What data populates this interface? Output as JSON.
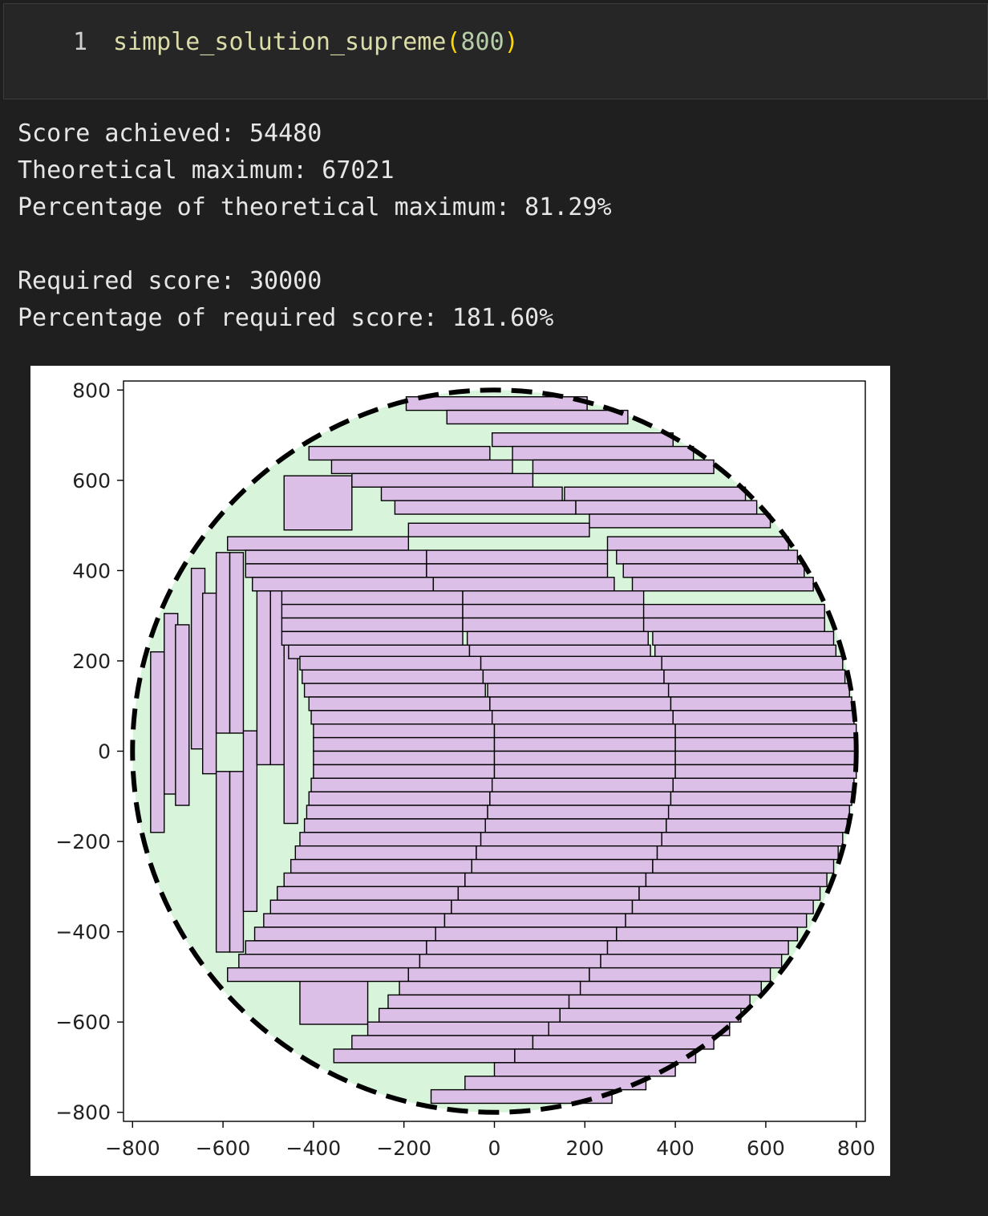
{
  "cell": {
    "line_number": "1",
    "function_name": "simple_solution_supreme",
    "open_paren": "(",
    "argument": "800",
    "close_paren": ")"
  },
  "output": {
    "score_line": "Score achieved: 54480",
    "theoretical_line": "Theoretical maximum: 67021",
    "pct_theoretical_line": "Percentage of theoretical maximum: 81.29%",
    "required_line": "Required score: 30000",
    "pct_required_line": "Percentage of required score: 181.60%"
  },
  "colors": {
    "circle_fill": "#d8f5dc",
    "rect_fill": "#dcbfe6",
    "edge": "#000000"
  },
  "chart_data": {
    "type": "rect-packing",
    "title": "",
    "xlabel": "",
    "ylabel": "",
    "xlim": [
      -820,
      820
    ],
    "ylim": [
      -820,
      820
    ],
    "xticks": [
      -800,
      -600,
      -400,
      -200,
      0,
      200,
      400,
      600,
      800
    ],
    "yticks": [
      800,
      600,
      400,
      200,
      0,
      -200,
      -400,
      -600,
      -800
    ],
    "xtick_labels": [
      "−800",
      "−600",
      "−400",
      "−200",
      "0",
      "200",
      "400",
      "600",
      "800"
    ],
    "ytick_labels": [
      "800",
      "600",
      "400",
      "200",
      "0",
      "−200",
      "−400",
      "−600",
      "−800"
    ],
    "circle": {
      "cx": 0,
      "cy": 0,
      "r": 800,
      "style": "dashed"
    },
    "vertical_rects": [
      [
        -760,
        -180,
        30,
        400
      ],
      [
        -730,
        -95,
        30,
        400
      ],
      [
        -705,
        -120,
        30,
        400
      ],
      [
        -670,
        5,
        30,
        400
      ],
      [
        -645,
        -50,
        30,
        400
      ],
      [
        -615,
        40,
        30,
        400
      ],
      [
        -585,
        40,
        30,
        400
      ],
      [
        -615,
        -445,
        30,
        400
      ],
      [
        -585,
        -445,
        30,
        400
      ],
      [
        -555,
        -355,
        30,
        400
      ],
      [
        -525,
        -30,
        30,
        400
      ],
      [
        -495,
        -30,
        30,
        400
      ],
      [
        -465,
        -160,
        30,
        400
      ]
    ],
    "squares": [
      [
        -465,
        490,
        150,
        120
      ],
      [
        -430,
        -605,
        150,
        120
      ]
    ],
    "horizontal_rows": [
      {
        "y": 770,
        "rects": [
          [
            -195,
            400
          ]
        ]
      },
      {
        "y": 740,
        "rects": [
          [
            -105,
            400
          ]
        ]
      },
      {
        "y": 690,
        "rects": [
          [
            -5,
            400
          ]
        ]
      },
      {
        "y": 660,
        "rects": [
          [
            -410,
            400
          ],
          [
            40,
            400
          ]
        ]
      },
      {
        "y": 630,
        "rects": [
          [
            -360,
            400
          ],
          [
            85,
            400
          ]
        ]
      },
      {
        "y": 600,
        "rects": [
          [
            -315,
            400
          ]
        ]
      },
      {
        "y": 570,
        "rects": [
          [
            -250,
            400
          ],
          [
            155,
            400
          ]
        ]
      },
      {
        "y": 540,
        "rects": [
          [
            -220,
            400
          ],
          [
            180,
            400
          ]
        ]
      },
      {
        "y": 510,
        "rects": [
          [
            210,
            400
          ]
        ]
      },
      {
        "y": 490,
        "rects": [
          [
            -190,
            400
          ]
        ]
      },
      {
        "y": 460,
        "rects": [
          [
            -590,
            400
          ],
          [
            250,
            400
          ]
        ]
      },
      {
        "y": 430,
        "rects": [
          [
            -550,
            400
          ],
          [
            -150,
            400
          ],
          [
            270,
            400
          ]
        ]
      },
      {
        "y": 400,
        "rects": [
          [
            -550,
            400
          ],
          [
            -150,
            400
          ],
          [
            285,
            400
          ]
        ]
      },
      {
        "y": 370,
        "rects": [
          [
            -535,
            400
          ],
          [
            -135,
            400
          ],
          [
            305,
            400
          ]
        ]
      },
      {
        "y": 340,
        "rects": [
          [
            -470,
            400
          ],
          [
            -70,
            400
          ]
        ]
      },
      {
        "y": 310,
        "rects": [
          [
            -470,
            400
          ],
          [
            -70,
            400
          ],
          [
            330,
            400
          ]
        ]
      },
      {
        "y": 280,
        "rects": [
          [
            -470,
            400
          ],
          [
            -70,
            400
          ],
          [
            330,
            400
          ]
        ]
      },
      {
        "y": 250,
        "rects": [
          [
            -470,
            400
          ],
          [
            -60,
            400
          ],
          [
            350,
            400
          ]
        ]
      },
      {
        "y": 220,
        "rects": [
          [
            -455,
            400
          ],
          [
            -55,
            400
          ],
          [
            355,
            400
          ]
        ]
      },
      {
        "y": 195,
        "rects": [
          [
            -430,
            400
          ],
          [
            -30,
            400
          ],
          [
            370,
            400
          ]
        ]
      },
      {
        "y": 165,
        "rects": [
          [
            -425,
            400
          ],
          [
            -25,
            400
          ],
          [
            375,
            400
          ]
        ]
      },
      {
        "y": 135,
        "rects": [
          [
            -420,
            400
          ],
          [
            -15,
            400
          ],
          [
            385,
            400
          ]
        ]
      },
      {
        "y": 105,
        "rects": [
          [
            -410,
            400
          ],
          [
            -10,
            400
          ],
          [
            390,
            400
          ]
        ]
      },
      {
        "y": 75,
        "rects": [
          [
            -405,
            400
          ],
          [
            -5,
            400
          ],
          [
            395,
            400
          ]
        ]
      },
      {
        "y": 45,
        "rects": [
          [
            -400,
            400
          ],
          [
            0,
            400
          ],
          [
            400,
            400
          ]
        ]
      },
      {
        "y": 15,
        "rects": [
          [
            -400,
            400
          ],
          [
            0,
            400
          ],
          [
            400,
            400
          ]
        ]
      },
      {
        "y": -15,
        "rects": [
          [
            -400,
            400
          ],
          [
            0,
            400
          ],
          [
            400,
            400
          ]
        ]
      },
      {
        "y": -45,
        "rects": [
          [
            -400,
            400
          ],
          [
            0,
            400
          ],
          [
            400,
            400
          ]
        ]
      },
      {
        "y": -75,
        "rects": [
          [
            -405,
            400
          ],
          [
            -5,
            400
          ],
          [
            395,
            400
          ]
        ]
      },
      {
        "y": -105,
        "rects": [
          [
            -410,
            400
          ],
          [
            -10,
            400
          ],
          [
            390,
            400
          ]
        ]
      },
      {
        "y": -135,
        "rects": [
          [
            -415,
            400
          ],
          [
            -15,
            400
          ],
          [
            385,
            400
          ]
        ]
      },
      {
        "y": -165,
        "rects": [
          [
            -420,
            400
          ],
          [
            -20,
            400
          ],
          [
            380,
            400
          ]
        ]
      },
      {
        "y": -195,
        "rects": [
          [
            -430,
            400
          ],
          [
            -30,
            400
          ],
          [
            370,
            400
          ]
        ]
      },
      {
        "y": -225,
        "rects": [
          [
            -440,
            400
          ],
          [
            -40,
            400
          ],
          [
            360,
            400
          ]
        ]
      },
      {
        "y": -255,
        "rects": [
          [
            -450,
            400
          ],
          [
            -50,
            400
          ],
          [
            350,
            400
          ]
        ]
      },
      {
        "y": -285,
        "rects": [
          [
            -465,
            400
          ],
          [
            -65,
            400
          ],
          [
            335,
            400
          ]
        ]
      },
      {
        "y": -315,
        "rects": [
          [
            -480,
            400
          ],
          [
            -80,
            400
          ],
          [
            320,
            400
          ]
        ]
      },
      {
        "y": -345,
        "rects": [
          [
            -495,
            400
          ],
          [
            -95,
            400
          ],
          [
            305,
            400
          ]
        ]
      },
      {
        "y": -375,
        "rects": [
          [
            -510,
            400
          ],
          [
            -110,
            400
          ],
          [
            290,
            400
          ]
        ]
      },
      {
        "y": -405,
        "rects": [
          [
            -530,
            400
          ],
          [
            -130,
            400
          ],
          [
            270,
            400
          ]
        ]
      },
      {
        "y": -435,
        "rects": [
          [
            -550,
            400
          ],
          [
            -150,
            400
          ],
          [
            250,
            400
          ]
        ]
      },
      {
        "y": -465,
        "rects": [
          [
            -565,
            400
          ],
          [
            -165,
            400
          ],
          [
            235,
            400
          ]
        ]
      },
      {
        "y": -495,
        "rects": [
          [
            -590,
            400
          ],
          [
            -190,
            400
          ],
          [
            210,
            400
          ]
        ]
      },
      {
        "y": -525,
        "rects": [
          [
            -210,
            400
          ],
          [
            190,
            400
          ]
        ]
      },
      {
        "y": -555,
        "rects": [
          [
            -235,
            400
          ],
          [
            165,
            400
          ]
        ]
      },
      {
        "y": -585,
        "rects": [
          [
            -255,
            400
          ],
          [
            145,
            400
          ]
        ]
      },
      {
        "y": -615,
        "rects": [
          [
            -280,
            400
          ],
          [
            120,
            400
          ]
        ]
      },
      {
        "y": -645,
        "rects": [
          [
            -315,
            400
          ],
          [
            85,
            400
          ]
        ]
      },
      {
        "y": -675,
        "rects": [
          [
            -355,
            400
          ],
          [
            45,
            400
          ]
        ]
      },
      {
        "y": -705,
        "rects": [
          [
            0,
            400
          ]
        ]
      },
      {
        "y": -735,
        "rects": [
          [
            -65,
            400
          ]
        ]
      },
      {
        "y": -765,
        "rects": [
          [
            -140,
            400
          ]
        ]
      }
    ]
  }
}
